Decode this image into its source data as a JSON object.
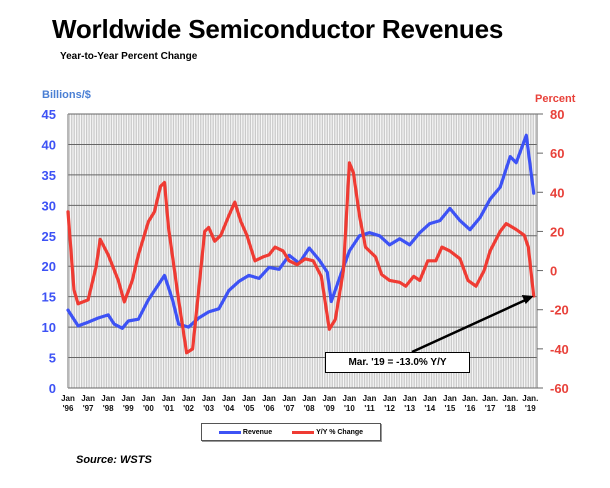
{
  "chart_data": {
    "type": "line",
    "title": "Worldwide Semiconductor Revenues",
    "subtitle": "Year-to-Year Percent Change",
    "ylabel_left": "Billions/$",
    "ylabel_right": "Percent",
    "ylim_left": [
      0,
      45
    ],
    "ylim_right": [
      -60,
      80
    ],
    "yticks_left": [
      "0",
      "5",
      "10",
      "15",
      "20",
      "25",
      "30",
      "35",
      "40",
      "45"
    ],
    "yticks_right": [
      "-60",
      "-40",
      "-20",
      "0",
      "20",
      "40",
      "60",
      "80"
    ],
    "xlim": [
      1996.0,
      2019.17
    ],
    "xtick_labels": [
      [
        "Jan",
        "'96"
      ],
      [
        "Jan",
        "'97"
      ],
      [
        "Jan",
        "'98"
      ],
      [
        "Jan",
        "'99"
      ],
      [
        "Jan",
        "'00"
      ],
      [
        "Jan",
        "'01"
      ],
      [
        "Jan",
        "'02"
      ],
      [
        "Jan",
        "'03"
      ],
      [
        "Jan",
        "'04"
      ],
      [
        "Jan",
        "'05"
      ],
      [
        "Jan",
        "'06"
      ],
      [
        "Jan",
        "'07"
      ],
      [
        "Jan",
        "'08"
      ],
      [
        "Jan",
        "'09"
      ],
      [
        "Jan",
        "'10"
      ],
      [
        "Jan",
        "'11"
      ],
      [
        "Jan",
        "'12"
      ],
      [
        "Jan",
        "'13"
      ],
      [
        "Jan",
        "'14"
      ],
      [
        "Jan",
        "'15"
      ],
      [
        "Jan.",
        "'16"
      ],
      [
        "Jan.",
        "'17"
      ],
      [
        "Jan.",
        "'18"
      ],
      [
        "Jan.",
        "'19"
      ]
    ],
    "grid": true,
    "legend_position": "bottom-center",
    "series": [
      {
        "name": "Revenue",
        "axis": "left",
        "color": "#3d52f5",
        "x": [
          1996.0,
          1996.5,
          1997.0,
          1997.5,
          1998.0,
          1998.3,
          1998.7,
          1999.0,
          1999.5,
          2000.0,
          2000.5,
          2000.8,
          2001.2,
          2001.5,
          2002.0,
          2002.5,
          2003.0,
          2003.5,
          2004.0,
          2004.5,
          2005.0,
          2005.5,
          2006.0,
          2006.5,
          2007.0,
          2007.5,
          2008.0,
          2008.5,
          2008.9,
          2009.1,
          2009.5,
          2010.0,
          2010.5,
          2011.0,
          2011.5,
          2012.0,
          2012.5,
          2013.0,
          2013.5,
          2014.0,
          2014.5,
          2015.0,
          2015.5,
          2016.0,
          2016.5,
          2017.0,
          2017.5,
          2018.0,
          2018.3,
          2018.8,
          2019.17
        ],
        "values": [
          12.8,
          10.2,
          10.8,
          11.5,
          12.0,
          10.5,
          9.8,
          11.0,
          11.3,
          14.5,
          17.0,
          18.5,
          14.5,
          10.5,
          10.0,
          11.5,
          12.5,
          13.0,
          16.0,
          17.5,
          18.5,
          18.0,
          19.8,
          19.5,
          21.8,
          20.5,
          23.0,
          21.0,
          19.0,
          14.2,
          18.0,
          22.5,
          25.0,
          25.5,
          25.0,
          23.5,
          24.5,
          23.5,
          25.5,
          27.0,
          27.5,
          29.5,
          27.5,
          26.0,
          28.0,
          31.0,
          33.0,
          38.0,
          37.0,
          41.5,
          32.0
        ]
      },
      {
        "name": "Y/Y % Change",
        "axis": "right",
        "color": "#ef3b33",
        "x": [
          1996.0,
          1996.3,
          1996.5,
          1997.0,
          1997.4,
          1997.6,
          1998.0,
          1998.5,
          1998.8,
          1999.2,
          1999.5,
          2000.0,
          2000.3,
          2000.6,
          2000.8,
          2001.0,
          2001.5,
          2001.9,
          2002.2,
          2002.5,
          2002.8,
          2003.0,
          2003.3,
          2003.6,
          2004.0,
          2004.3,
          2004.6,
          2004.9,
          2005.3,
          2005.7,
          2006.0,
          2006.3,
          2006.7,
          2007.0,
          2007.4,
          2007.8,
          2008.2,
          2008.6,
          2009.0,
          2009.3,
          2009.7,
          2010.0,
          2010.2,
          2010.5,
          2010.8,
          2011.3,
          2011.6,
          2012.0,
          2012.5,
          2012.8,
          2013.2,
          2013.5,
          2013.9,
          2014.3,
          2014.6,
          2015.0,
          2015.5,
          2015.9,
          2016.3,
          2016.7,
          2017.0,
          2017.5,
          2017.8,
          2018.3,
          2018.7,
          2018.9,
          2019.17
        ],
        "values": [
          30,
          -10,
          -17,
          -15,
          2,
          16,
          8,
          -5,
          -16,
          -5,
          8,
          25,
          30,
          43,
          45,
          22,
          -15,
          -42,
          -40,
          -10,
          20,
          22,
          15,
          18,
          28,
          35,
          25,
          18,
          5,
          7,
          8,
          12,
          10,
          5,
          3,
          6,
          5,
          -3,
          -30,
          -25,
          0,
          55,
          50,
          28,
          12,
          7,
          -2,
          -5,
          -6,
          -8,
          -3,
          -5,
          5,
          5,
          12,
          10,
          6,
          -5,
          -8,
          0,
          10,
          20,
          24,
          21,
          18,
          12,
          -13
        ]
      }
    ],
    "annotation": "Mar. '19 = -13.0% Y/Y"
  },
  "source": "Source: WSTS"
}
